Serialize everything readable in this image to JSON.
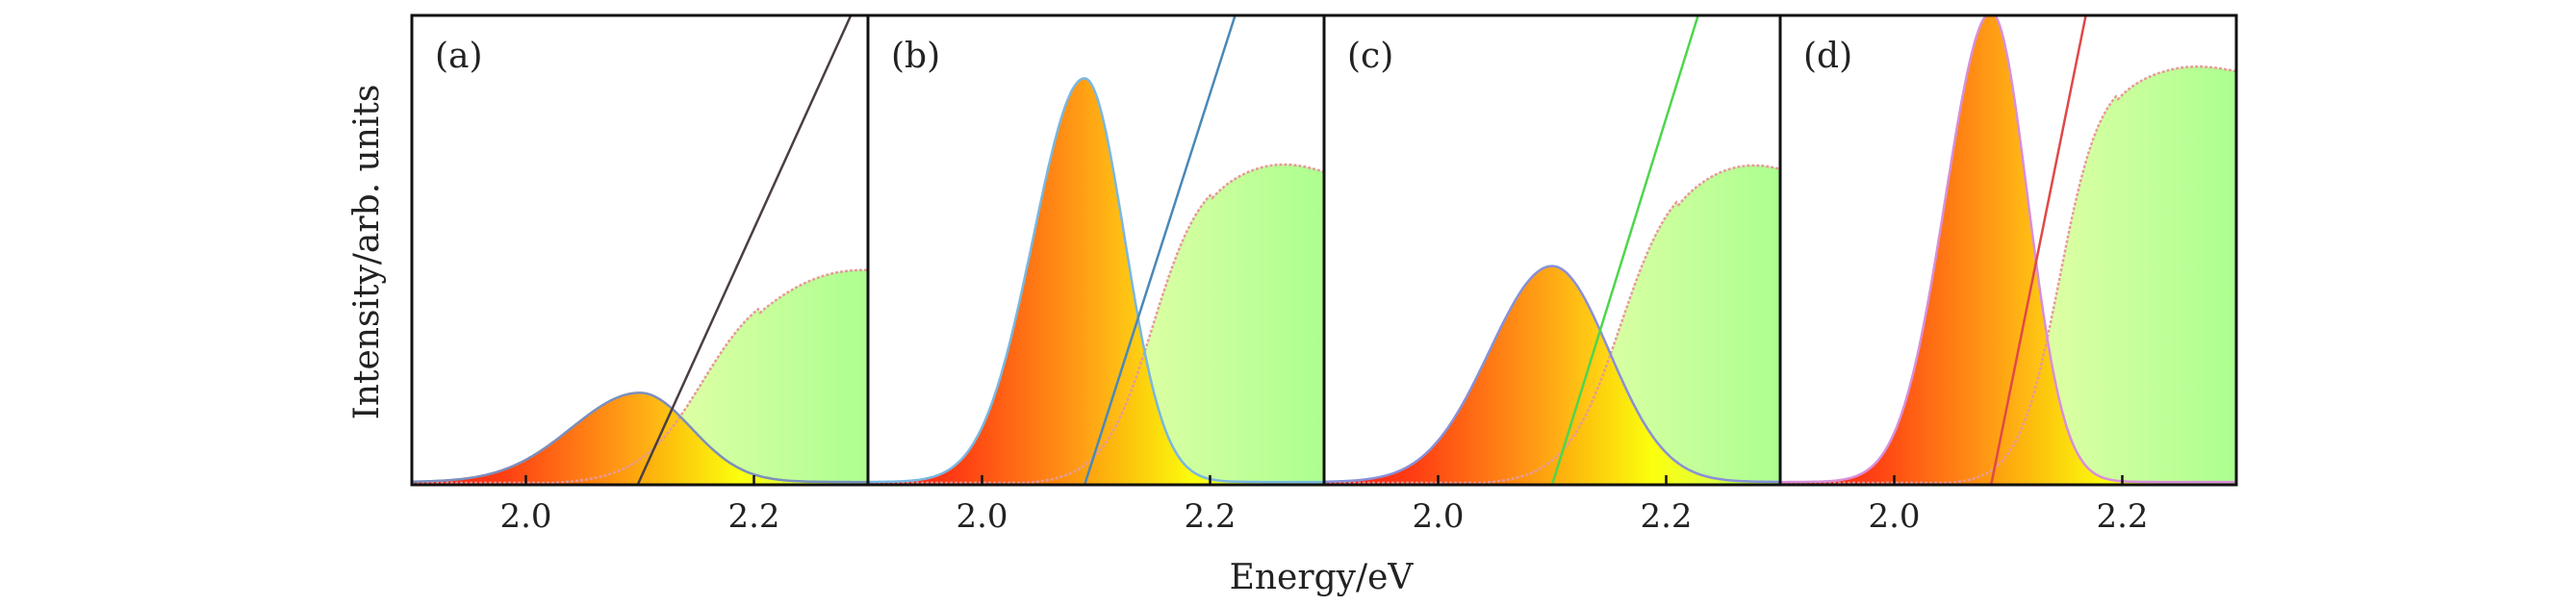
{
  "figure": {
    "xlabel": "Energy/eV",
    "ylabel": "Intensity/arb. units"
  },
  "chart_data": [
    {
      "type": "area",
      "panel_label": "(a)",
      "xlim": [
        1.9,
        2.3
      ],
      "ylim": [
        0,
        1.0
      ],
      "xticks": [
        2.0,
        2.2
      ],
      "xtick_labels": [
        "2.0",
        "2.2"
      ],
      "emission_peak": {
        "center": 2.1,
        "height": 0.19,
        "sigma_left": 0.06,
        "sigma_right": 0.045,
        "line_color": "#7b8fbd"
      },
      "absorption_edge": {
        "onset": 2.155,
        "width": 0.028,
        "plateau": 0.44,
        "slope": 0.02,
        "line_color": "#e69a9a"
      },
      "tangent": {
        "x_at_zero": 2.098,
        "x_at_top": 2.285,
        "color": "#4a3f3f"
      }
    },
    {
      "type": "area",
      "panel_label": "(b)",
      "xlim": [
        1.9,
        2.3
      ],
      "ylim": [
        0,
        1.0
      ],
      "xticks": [
        2.0,
        2.2
      ],
      "xtick_labels": [
        "2.0",
        "2.2"
      ],
      "emission_peak": {
        "center": 2.09,
        "height": 0.86,
        "sigma_left": 0.045,
        "sigma_right": 0.035,
        "line_color": "#79b7e0"
      },
      "absorption_edge": {
        "onset": 2.15,
        "width": 0.022,
        "plateau": 0.68,
        "slope": -0.02,
        "line_color": "#e69a9a"
      },
      "tangent": {
        "x_at_zero": 2.09,
        "x_at_top": 2.222,
        "color": "#4a88b7"
      }
    },
    {
      "type": "area",
      "panel_label": "(c)",
      "xlim": [
        1.9,
        2.3
      ],
      "ylim": [
        0,
        1.0
      ],
      "xticks": [
        2.0,
        2.2
      ],
      "xtick_labels": [
        "2.0",
        "2.2"
      ],
      "emission_peak": {
        "center": 2.1,
        "height": 0.46,
        "sigma_left": 0.055,
        "sigma_right": 0.05,
        "line_color": "#8890d8"
      },
      "absorption_edge": {
        "onset": 2.16,
        "width": 0.024,
        "plateau": 0.68,
        "slope": -0.02,
        "line_color": "#e69a9a"
      },
      "tangent": {
        "x_at_zero": 2.1,
        "x_at_top": 2.228,
        "color": "#4dd64d"
      }
    },
    {
      "type": "area",
      "panel_label": "(d)",
      "xlim": [
        1.9,
        2.3
      ],
      "ylim": [
        0,
        1.0
      ],
      "xticks": [
        2.0,
        2.2
      ],
      "xtick_labels": [
        "2.0",
        "2.2"
      ],
      "emission_peak": {
        "center": 2.085,
        "height": 1.0,
        "sigma_left": 0.04,
        "sigma_right": 0.032,
        "line_color": "#d88fd8"
      },
      "absorption_edge": {
        "onset": 2.145,
        "width": 0.018,
        "plateau": 0.88,
        "slope": 0.0,
        "line_color": "#e69a9a"
      },
      "tangent": {
        "x_at_zero": 2.085,
        "x_at_top": 2.168,
        "color": "#e04848"
      }
    }
  ]
}
